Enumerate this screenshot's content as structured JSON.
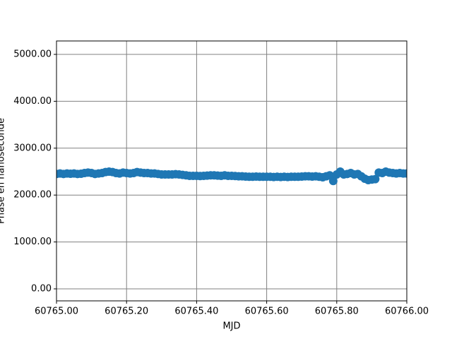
{
  "chart_data": {
    "type": "scatter",
    "x_label": "MJD",
    "y_label": "Phase en nanoseconde",
    "color": "#1f77b4",
    "grid": true,
    "xlim": [
      60765.0,
      60766.0
    ],
    "xticks": [
      {
        "value": 60765.0,
        "label": "60765.00"
      },
      {
        "value": 60765.2,
        "label": "60765.20"
      },
      {
        "value": 60765.4,
        "label": "60765.40"
      },
      {
        "value": 60765.6,
        "label": "60765.60"
      },
      {
        "value": 60765.8,
        "label": "60765.80"
      },
      {
        "value": 60766.0,
        "label": "60766.00"
      }
    ],
    "ylim": [
      -256,
      5286
    ],
    "yticks": [
      {
        "value": 0,
        "label": "0.00"
      },
      {
        "value": 1000,
        "label": "1000.00"
      },
      {
        "value": 2000,
        "label": "2000.00"
      },
      {
        "value": 3000,
        "label": "3000.00"
      },
      {
        "value": 4000,
        "label": "4000.00"
      },
      {
        "value": 5000,
        "label": "5000.00"
      }
    ],
    "x": [
      60765.0,
      60765.01,
      60765.02,
      60765.03,
      60765.04,
      60765.05,
      60765.06,
      60765.07,
      60765.08,
      60765.09,
      60765.1,
      60765.11,
      60765.12,
      60765.13,
      60765.14,
      60765.15,
      60765.16,
      60765.17,
      60765.18,
      60765.19,
      60765.2,
      60765.21,
      60765.22,
      60765.23,
      60765.24,
      60765.25,
      60765.26,
      60765.27,
      60765.28,
      60765.29,
      60765.3,
      60765.31,
      60765.32,
      60765.33,
      60765.34,
      60765.35,
      60765.36,
      60765.37,
      60765.38,
      60765.39,
      60765.4,
      60765.41,
      60765.42,
      60765.43,
      60765.44,
      60765.45,
      60765.46,
      60765.47,
      60765.48,
      60765.49,
      60765.5,
      60765.51,
      60765.52,
      60765.53,
      60765.54,
      60765.55,
      60765.56,
      60765.57,
      60765.58,
      60765.59,
      60765.6,
      60765.61,
      60765.62,
      60765.63,
      60765.64,
      60765.65,
      60765.66,
      60765.67,
      60765.68,
      60765.69,
      60765.7,
      60765.71,
      60765.72,
      60765.73,
      60765.74,
      60765.75,
      60765.76,
      60765.77,
      60765.78,
      60765.79,
      60765.8,
      60765.81,
      60765.82,
      60765.83,
      60765.84,
      60765.85,
      60765.86,
      60765.87,
      60765.88,
      60765.89,
      60765.9,
      60765.91,
      60765.92,
      60765.93,
      60765.94,
      60765.95,
      60765.96,
      60765.97,
      60765.98,
      60765.99,
      60766.0
    ],
    "values": [
      2450,
      2460,
      2450,
      2460,
      2455,
      2460,
      2450,
      2455,
      2470,
      2480,
      2470,
      2450,
      2460,
      2470,
      2490,
      2500,
      2490,
      2470,
      2460,
      2480,
      2470,
      2460,
      2470,
      2490,
      2480,
      2470,
      2470,
      2460,
      2460,
      2450,
      2440,
      2440,
      2440,
      2440,
      2445,
      2440,
      2430,
      2420,
      2410,
      2410,
      2410,
      2405,
      2410,
      2415,
      2420,
      2420,
      2415,
      2410,
      2420,
      2410,
      2410,
      2405,
      2400,
      2400,
      2395,
      2390,
      2390,
      2395,
      2390,
      2390,
      2390,
      2390,
      2385,
      2390,
      2385,
      2390,
      2385,
      2390,
      2390,
      2390,
      2395,
      2400,
      2400,
      2395,
      2400,
      2390,
      2380,
      2400,
      2420,
      2300,
      2440,
      2500,
      2440,
      2450,
      2470,
      2440,
      2450,
      2400,
      2350,
      2320,
      2330,
      2340,
      2480,
      2470,
      2500,
      2480,
      2470,
      2460,
      2470,
      2460,
      2460
    ]
  }
}
